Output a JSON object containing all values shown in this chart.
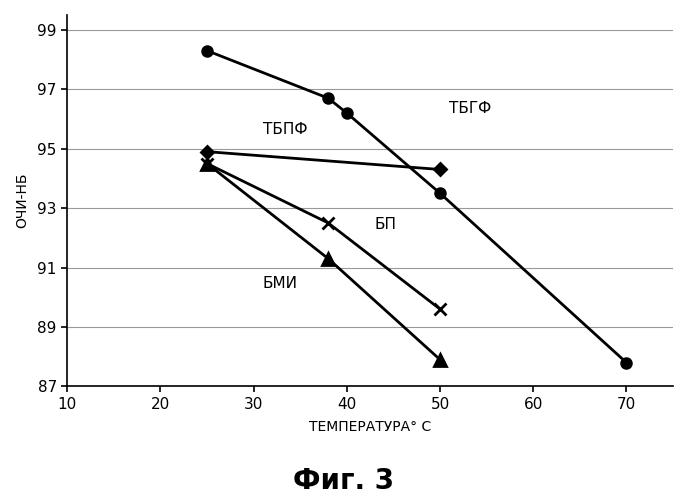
{
  "title": "Фиг. 3",
  "xlabel": "ТЕМПЕРАТУРА° С",
  "ylabel": "ОЧИ-НБ",
  "xlim": [
    10,
    75
  ],
  "ylim": [
    87,
    99.5
  ],
  "xticks": [
    10,
    20,
    30,
    40,
    50,
    60,
    70
  ],
  "yticks": [
    87,
    89,
    91,
    93,
    95,
    97,
    99
  ],
  "series": [
    {
      "label": "ТБГФ",
      "x": [
        25,
        38,
        40,
        50,
        70
      ],
      "y": [
        98.3,
        96.7,
        96.2,
        93.5,
        87.8
      ],
      "marker": "o",
      "markersize": 7,
      "color": "#000000",
      "linewidth": 2.0,
      "fillstyle": "full",
      "annotation": "ТБГФ",
      "ann_x": 51,
      "ann_y": 96.2
    },
    {
      "label": "ТБПФ",
      "x": [
        25,
        50
      ],
      "y": [
        94.9,
        94.3
      ],
      "marker": "D",
      "markersize": 6,
      "color": "#000000",
      "linewidth": 2.0,
      "fillstyle": "full",
      "annotation": "ТБПФ",
      "ann_x": 31,
      "ann_y": 95.5
    },
    {
      "label": "БП",
      "x": [
        25,
        38,
        50
      ],
      "y": [
        94.5,
        92.5,
        89.6
      ],
      "marker": "x",
      "markersize": 9,
      "color": "#000000",
      "linewidth": 2.0,
      "fillstyle": "full",
      "annotation": "БП",
      "ann_x": 43,
      "ann_y": 92.3
    },
    {
      "label": "БМИ",
      "x": [
        25,
        38,
        50
      ],
      "y": [
        94.5,
        91.3,
        87.9
      ],
      "marker": "^",
      "markersize": 8,
      "color": "#000000",
      "linewidth": 2.0,
      "fillstyle": "full",
      "annotation": "БМИ",
      "ann_x": 31,
      "ann_y": 90.3
    }
  ],
  "background_color": "#ffffff",
  "grid_color": "#999999",
  "grid_linewidth": 0.8
}
